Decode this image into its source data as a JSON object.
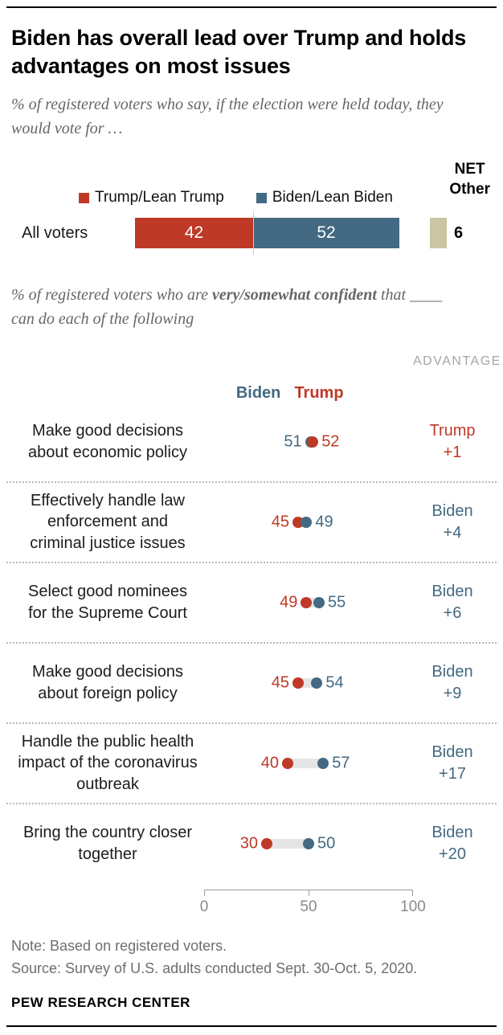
{
  "colors": {
    "trump_red": "#bf3927",
    "biden_blue": "#436983",
    "other_beige": "#cbc5a2",
    "connector_gray": "#e5e5e5",
    "advantage_header_gray": "#a6a6a6"
  },
  "header": {
    "title": "Biden has overall lead over Trump and holds advantages on most issues",
    "vote_subtitle": "% of registered voters who say, if the election were held today, they would vote for …"
  },
  "confidence_subtitle": {
    "prefix": "% of registered voters who are ",
    "bold": "very/somewhat confident",
    "suffix": " that ____ can do each of the following"
  },
  "vote_chart": {
    "net_other": {
      "line1": "NET",
      "line2": "Other"
    }
  },
  "chart_data": [
    {
      "type": "bar",
      "subtype": "stacked-horizontal",
      "title": "% of registered voters who say, if the election were held today, they would vote for …",
      "categories": [
        "All voters"
      ],
      "series": [
        {
          "name": "Trump/Lean Trump",
          "values": [
            42
          ],
          "color": "#bf3927"
        },
        {
          "name": "Biden/Lean Biden",
          "values": [
            52
          ],
          "color": "#436983"
        },
        {
          "name": "NET Other",
          "values": [
            6
          ],
          "color": "#cbc5a2"
        }
      ],
      "xlim": [
        0,
        100
      ],
      "value_labels": true
    },
    {
      "type": "scatter",
      "subtype": "dot-plot",
      "title": "% of registered voters who are very/somewhat confident that ____ can do each of the following",
      "advantage_header": "ADVANTAGE",
      "series_names": [
        "Biden",
        "Trump"
      ],
      "xlim": [
        0,
        100
      ],
      "x_ticks": [
        0,
        50,
        100
      ],
      "grid": false,
      "rows": [
        {
          "label": "Make good decisions about economic policy",
          "biden": 51,
          "trump": 52,
          "advantage_party": "Trump",
          "advantage_value": "+1"
        },
        {
          "label": "Effectively handle law enforcement and criminal justice issues",
          "biden": 49,
          "trump": 45,
          "advantage_party": "Biden",
          "advantage_value": "+4"
        },
        {
          "label": "Select good nominees for the Supreme Court",
          "biden": 55,
          "trump": 49,
          "advantage_party": "Biden",
          "advantage_value": "+6"
        },
        {
          "label": "Make good decisions about foreign policy",
          "biden": 54,
          "trump": 45,
          "advantage_party": "Biden",
          "advantage_value": "+9"
        },
        {
          "label": "Handle the public health impact of the coronavirus outbreak",
          "biden": 57,
          "trump": 40,
          "advantage_party": "Biden",
          "advantage_value": "+17"
        },
        {
          "label": "Bring the country closer together",
          "biden": 50,
          "trump": 30,
          "advantage_party": "Biden",
          "advantage_value": "+20"
        }
      ]
    }
  ],
  "footer": {
    "note": "Note: Based on registered voters.",
    "source": "Source: Survey of U.S. adults conducted Sept. 30-Oct. 5, 2020.",
    "brand": "PEW RESEARCH CENTER"
  }
}
